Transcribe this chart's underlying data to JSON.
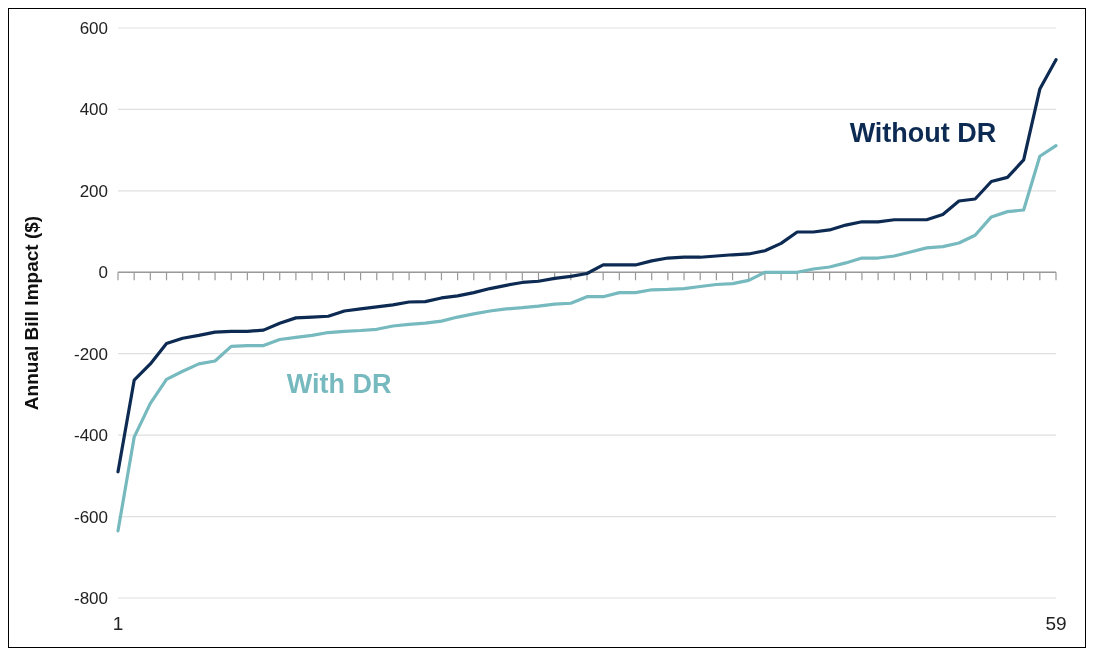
{
  "chart_data": {
    "type": "line",
    "ylabel": "Annual Bill Impact ($)",
    "x": [
      1,
      2,
      3,
      4,
      5,
      6,
      7,
      8,
      9,
      10,
      11,
      12,
      13,
      14,
      15,
      16,
      17,
      18,
      19,
      20,
      21,
      22,
      23,
      24,
      25,
      26,
      27,
      28,
      29,
      30,
      31,
      32,
      33,
      34,
      35,
      36,
      37,
      38,
      39,
      40,
      41,
      42,
      43,
      44,
      45,
      46,
      47,
      48,
      49,
      50,
      51,
      52,
      53,
      54,
      55,
      56,
      57,
      58,
      59
    ],
    "xlim": [
      1,
      59
    ],
    "xticks": [
      1,
      {
        "value": 2,
        "label": null
      },
      {
        "value": 3,
        "label": null
      },
      {
        "value": 4,
        "label": null
      },
      {
        "value": 5,
        "label": null
      },
      {
        "value": 6,
        "label": null
      },
      {
        "value": 7,
        "label": null
      },
      {
        "value": 8,
        "label": null
      },
      {
        "value": 9,
        "label": null
      },
      {
        "value": 10,
        "label": null
      },
      {
        "value": 11,
        "label": null
      },
      {
        "value": 12,
        "label": null
      },
      {
        "value": 13,
        "label": null
      },
      {
        "value": 14,
        "label": null
      },
      {
        "value": 15,
        "label": null
      },
      {
        "value": 16,
        "label": null
      },
      {
        "value": 17,
        "label": null
      },
      {
        "value": 18,
        "label": null
      },
      {
        "value": 19,
        "label": null
      },
      {
        "value": 20,
        "label": null
      },
      {
        "value": 21,
        "label": null
      },
      {
        "value": 22,
        "label": null
      },
      {
        "value": 23,
        "label": null
      },
      {
        "value": 24,
        "label": null
      },
      {
        "value": 25,
        "label": null
      },
      {
        "value": 26,
        "label": null
      },
      {
        "value": 27,
        "label": null
      },
      {
        "value": 28,
        "label": null
      },
      {
        "value": 29,
        "label": null
      },
      {
        "value": 30,
        "label": null
      },
      {
        "value": 31,
        "label": null
      },
      {
        "value": 32,
        "label": null
      },
      {
        "value": 33,
        "label": null
      },
      {
        "value": 34,
        "label": null
      },
      {
        "value": 35,
        "label": null
      },
      {
        "value": 36,
        "label": null
      },
      {
        "value": 37,
        "label": null
      },
      {
        "value": 38,
        "label": null
      },
      {
        "value": 39,
        "label": null
      },
      {
        "value": 40,
        "label": null
      },
      {
        "value": 41,
        "label": null
      },
      {
        "value": 42,
        "label": null
      },
      {
        "value": 43,
        "label": null
      },
      {
        "value": 44,
        "label": null
      },
      {
        "value": 45,
        "label": null
      },
      {
        "value": 46,
        "label": null
      },
      {
        "value": 47,
        "label": null
      },
      {
        "value": 48,
        "label": null
      },
      {
        "value": 49,
        "label": null
      },
      {
        "value": 50,
        "label": null
      },
      {
        "value": 51,
        "label": null
      },
      {
        "value": 52,
        "label": null
      },
      {
        "value": 53,
        "label": null
      },
      {
        "value": 54,
        "label": null
      },
      {
        "value": 55,
        "label": null
      },
      {
        "value": 56,
        "label": null
      },
      {
        "value": 57,
        "label": null
      },
      {
        "value": 58,
        "label": null
      },
      59
    ],
    "ylim": [
      -800,
      600
    ],
    "yticks": [
      -800,
      -600,
      -400,
      -200,
      0,
      200,
      400,
      600
    ],
    "grid": "y",
    "legend": false,
    "series": [
      {
        "name": "Without DR",
        "color": "#0d2a52",
        "values": [
          -490,
          -265,
          -225,
          -175,
          -162,
          -155,
          -147,
          -145,
          -145,
          -142,
          -125,
          -112,
          -110,
          -108,
          -95,
          -90,
          -85,
          -80,
          -73,
          -72,
          -63,
          -58,
          -50,
          -40,
          -32,
          -25,
          -22,
          -15,
          -10,
          -3,
          18,
          18,
          18,
          28,
          35,
          37,
          37,
          40,
          43,
          45,
          53,
          71,
          99,
          99,
          104,
          116,
          124,
          124,
          129,
          129,
          129,
          142,
          175,
          180,
          223,
          233,
          276,
          450,
          522
        ]
      },
      {
        "name": "With DR",
        "color": "#76b9be",
        "values": [
          -635,
          -405,
          -322,
          -263,
          -243,
          -225,
          -218,
          -182,
          -180,
          -180,
          -165,
          -160,
          -155,
          -148,
          -145,
          -143,
          -140,
          -132,
          -128,
          -125,
          -120,
          -110,
          -102,
          -95,
          -90,
          -87,
          -83,
          -78,
          -76,
          -60,
          -60,
          -50,
          -50,
          -43,
          -42,
          -40,
          -35,
          -30,
          -28,
          -20,
          0,
          0,
          0,
          8,
          13,
          23,
          35,
          35,
          40,
          50,
          60,
          63,
          72,
          91,
          136,
          149,
          153,
          285,
          311
        ]
      }
    ]
  }
}
